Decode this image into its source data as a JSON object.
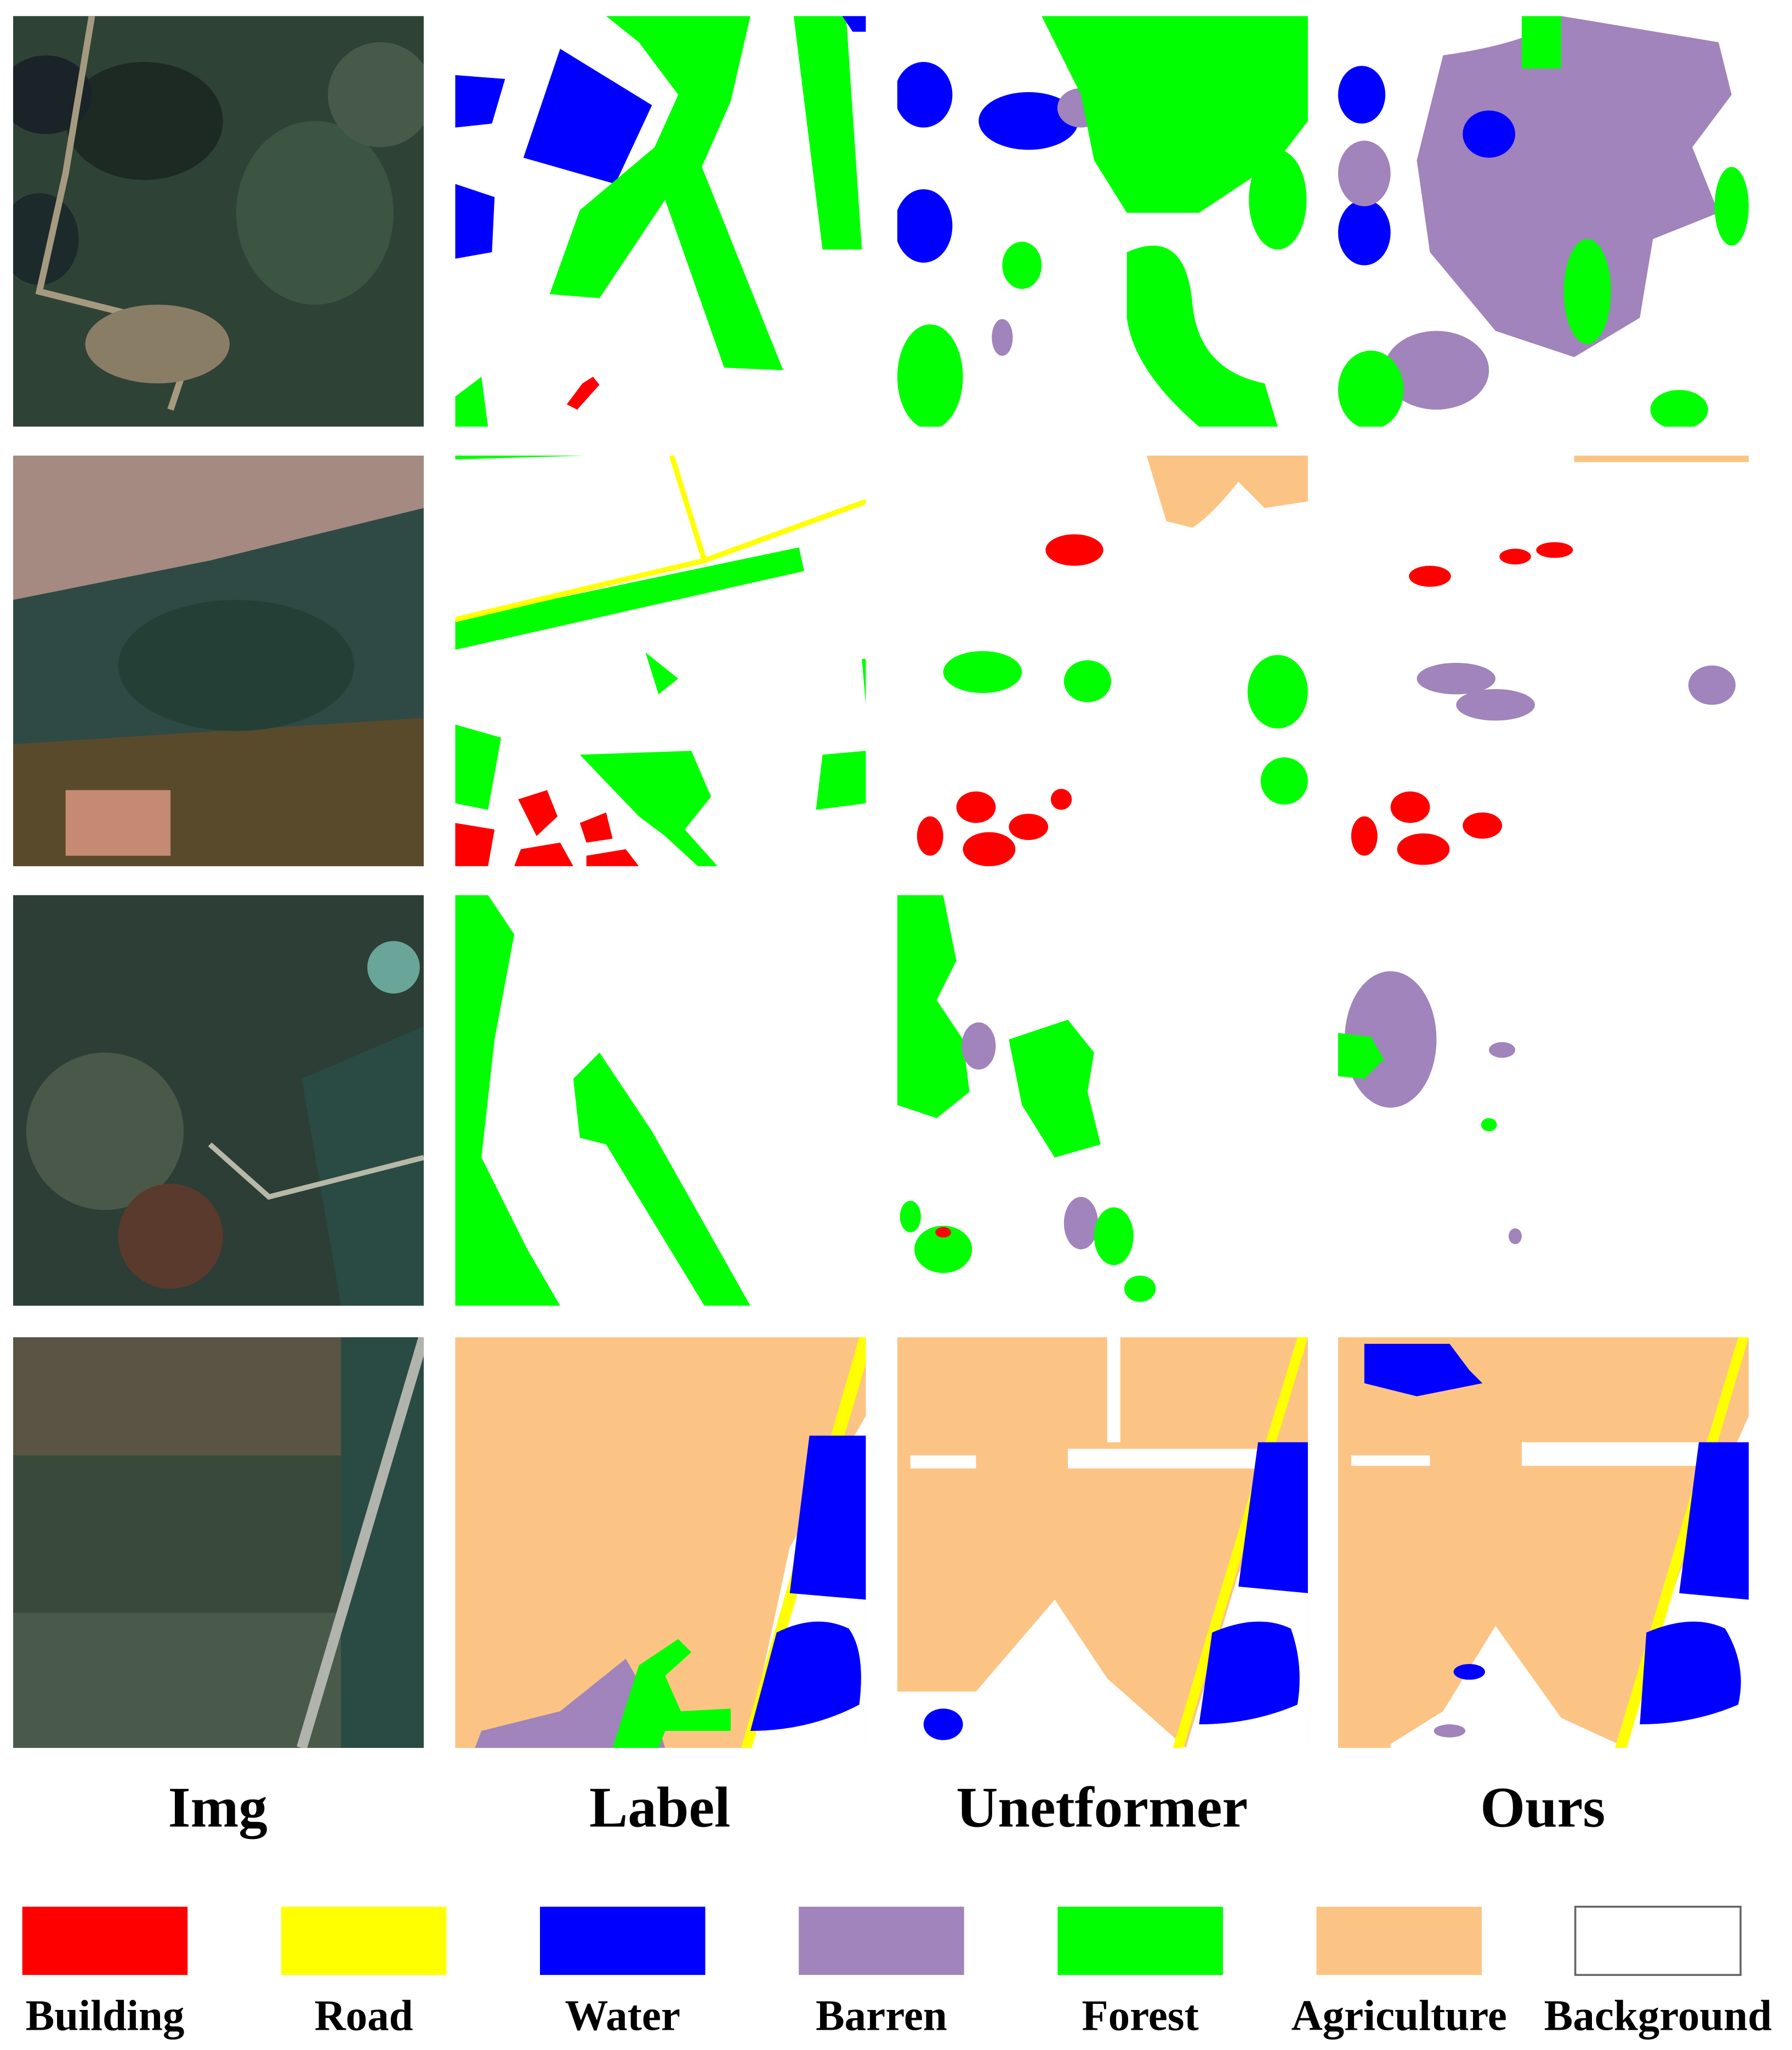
{
  "columns": [
    "Img",
    "Label",
    "Unetformer",
    "Ours"
  ],
  "legend": [
    {
      "name": "Building",
      "color": "#ff0000"
    },
    {
      "name": "Road",
      "color": "#ffff00"
    },
    {
      "name": "Water",
      "color": "#0000ff"
    },
    {
      "name": "Barren",
      "color": "#a084bb"
    },
    {
      "name": "Forest",
      "color": "#00ff00"
    },
    {
      "name": "Agriculture",
      "color": "#fcc484"
    },
    {
      "name": "Background",
      "color": "#ffffff"
    }
  ]
}
